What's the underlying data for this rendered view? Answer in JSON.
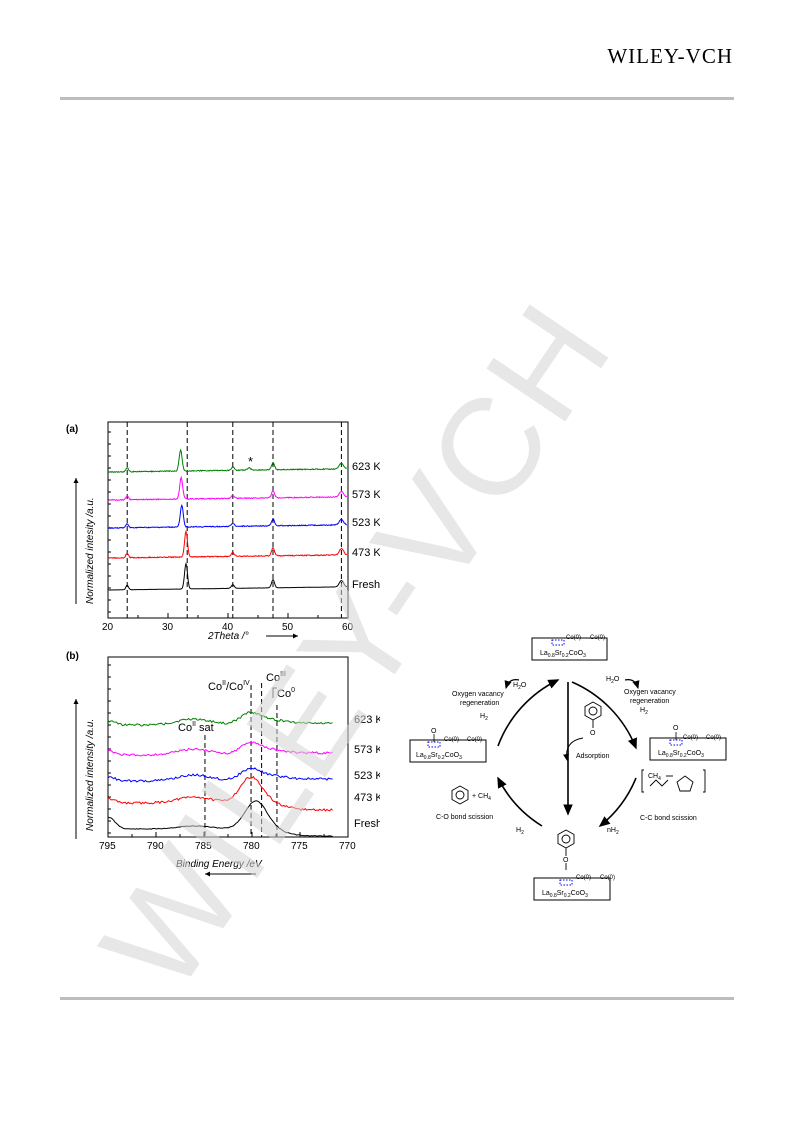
{
  "header": {
    "publisher": "WILEY-VCH"
  },
  "watermark": {
    "text": "WILEY-VCH",
    "color": "#d4d4d4"
  },
  "figure_a": {
    "label": "(a)",
    "ylabel": "Normalized intesity /a.u.",
    "xlabel": "2Theta /°",
    "x_ticks": [
      "20",
      "30",
      "40",
      "50",
      "60"
    ],
    "marker": "*",
    "chart_data": {
      "type": "line",
      "xlim": [
        20,
        60
      ],
      "dashed_lines_x": [
        23.2,
        33.2,
        40.8,
        47.5,
        58.9
      ],
      "peaks": [
        {
          "x": 23.2,
          "height": 0.25,
          "width": 0.3
        },
        {
          "x": 33.0,
          "height": 1.4,
          "width": 0.35
        },
        {
          "x": 40.8,
          "height": 0.2,
          "width": 0.35
        },
        {
          "x": 47.5,
          "height": 0.45,
          "width": 0.35
        },
        {
          "x": 58.9,
          "height": 0.35,
          "width": 0.5
        }
      ],
      "series": [
        {
          "name": "Fresh",
          "color": "#000000"
        },
        {
          "name": "473 K",
          "color": "#ff0000"
        },
        {
          "name": "523 K",
          "color": "#0000ff"
        },
        {
          "name": "573 K",
          "color": "#ff00ff"
        },
        {
          "name": "623 K",
          "color": "#008000"
        }
      ]
    }
  },
  "figure_b": {
    "label": "(b)",
    "ylabel": "Normalized intensity /a.u.",
    "xlabel": "Binding Energy /eV",
    "x_ticks": [
      "795",
      "790",
      "785",
      "780",
      "775",
      "770"
    ],
    "annotations": {
      "co2_sat": "Co",
      "co2_sat_sup": "II",
      "co2_sat_tail": " sat",
      "co2co4": "Co",
      "co2co4_sup": "II",
      "co2co4_mid": "/Co",
      "co2co4_sup2": "IV",
      "co3": "Co",
      "co3_sup": "III",
      "co0": "Co",
      "co0_sup": "0"
    },
    "chart_data": {
      "type": "line",
      "xlim": [
        795,
        770
      ],
      "dashed_lines_x": [
        784.9,
        780.1,
        779.0,
        777.4
      ],
      "series": [
        {
          "name": "Fresh",
          "color": "#000000"
        },
        {
          "name": "473 K",
          "color": "#ff0000"
        },
        {
          "name": "523 K",
          "color": "#0000ff"
        },
        {
          "name": "573 K",
          "color": "#ff00ff"
        },
        {
          "name": "623 K",
          "color": "#008000"
        }
      ]
    }
  },
  "scheme": {
    "catalyst": "La",
    "catalyst_sub1": "0.8",
    "sr": "Sr",
    "catalyst_sub2": "0.2",
    "coo": "CoO",
    "catalyst_sub3": "3",
    "co0_left": "Co(0)",
    "co0_right": "Co(0)",
    "oxygen_vacancy_1": "Oxygen vacancy",
    "oxygen_vacancy_2": "regeneration",
    "h2o": "H",
    "h2o_sub": "2",
    "h2o_tail": "O",
    "h2": "H",
    "h2_sub": "2",
    "adsorption": "Adsorption",
    "co_scission": "C-O bond scission",
    "cc_scission": "C-C bond scission",
    "plus_ch4": "+ CH",
    "ch4_sub": "4",
    "nh2": "nH",
    "ch4": "CH",
    "o": "O"
  }
}
